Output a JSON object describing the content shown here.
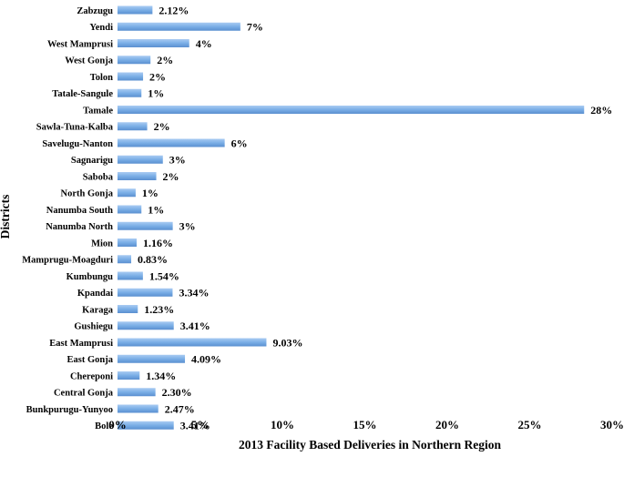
{
  "chart_data": {
    "type": "bar",
    "orientation": "horizontal",
    "xlabel": "2013 Facility Based Deliveries in Northern Region",
    "ylabel": "Districts",
    "xlim": [
      0,
      30
    ],
    "x_ticks": [
      "0%",
      "5%",
      "10%",
      "15%",
      "20%",
      "25%",
      "30%"
    ],
    "grid": false,
    "bar_color": "#7aaee6",
    "categories": [
      "Zabzugu",
      "Yendi",
      "West Mamprusi",
      "West Gonja",
      "Tolon",
      "Tatale-Sangule",
      "Tamale",
      "Sawla-Tuna-Kalba",
      "Savelugu-Nanton",
      "Sagnarigu",
      "Saboba",
      "North Gonja",
      "Nanumba South",
      "Nanumba North",
      "Mion",
      "Mamprugu-Moagduri",
      "Kumbungu",
      "Kpandai",
      "Karaga",
      "Gushiegu",
      "East Mamprusi",
      "East Gonja",
      "Chereponi",
      "Central Gonja",
      "Bunkpurugu-Yunyoo",
      "Bole"
    ],
    "values": [
      2.12,
      7.45,
      4.35,
      2.0,
      1.55,
      1.45,
      28.3,
      1.8,
      6.5,
      2.75,
      2.35,
      1.1,
      1.45,
      3.35,
      1.16,
      0.83,
      1.54,
      3.34,
      1.23,
      3.41,
      9.03,
      4.09,
      1.34,
      2.3,
      2.47,
      3.41
    ],
    "data_labels": [
      "2.12%",
      "7%",
      "4%",
      "2%",
      "2%",
      "1%",
      "28%",
      "2%",
      "6%",
      "3%",
      "2%",
      "1%",
      "1%",
      "3%",
      "1.16%",
      "0.83%",
      "1.54%",
      "3.34%",
      "1.23%",
      "3.41%",
      "9.03%",
      "4.09%",
      "1.34%",
      "2.30%",
      "2.47%",
      "3.41%"
    ]
  }
}
